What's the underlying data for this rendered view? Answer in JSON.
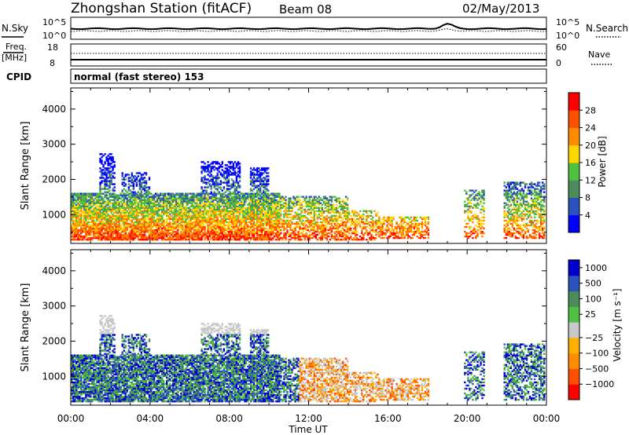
{
  "header": {
    "station": "Zhongshan Station (fitACF)",
    "beam": "Beam 08",
    "date": "02/May/2013"
  },
  "sky_panel": {
    "left_label": "N.Sky",
    "left_top": "10^5",
    "left_bottom": "10^0",
    "right_top": "10^5",
    "right_bottom": "10^0",
    "right_label": "N.Search"
  },
  "freq_panel": {
    "left_label_1": "Freq.",
    "left_label_2": "[MHz]",
    "left_top": "18",
    "left_bottom": "8",
    "right_top": "60",
    "right_bottom": "0",
    "right_label": "Nave"
  },
  "cpid": {
    "label": "CPID",
    "text": "normal (fast stereo) 153"
  },
  "colors": {
    "power_scale": [
      "#0000ff",
      "#2a52be",
      "#4c8c5c",
      "#50c040",
      "#ffd700",
      "#ff8c00",
      "#ff5000",
      "#ff0000"
    ],
    "velocity_scale": [
      "#ff0000",
      "#ff5000",
      "#ff8c00",
      "#ffb000",
      "#c8c8c8",
      "#50c040",
      "#4c8c5c",
      "#2a52be",
      "#0000cc"
    ]
  },
  "chart_data": [
    {
      "type": "heatmap",
      "panel": "power",
      "ylabel": "Slant Range [km]",
      "xlabel": "Time UT",
      "x_ticks": [
        "00:00",
        "04:00",
        "08:00",
        "12:00",
        "16:00",
        "20:00",
        "00:00"
      ],
      "y_ticks": [
        1000,
        2000,
        3000,
        4000
      ],
      "xlim": [
        0,
        24
      ],
      "ylim": [
        180,
        4600
      ],
      "colorbar": {
        "label": "Power [dB]",
        "ticks": [
          "4",
          "8",
          "12",
          "16",
          "20",
          "24",
          "28"
        ],
        "range": [
          0,
          32
        ]
      }
    },
    {
      "type": "heatmap",
      "panel": "velocity",
      "ylabel": "Slant Range [km]",
      "xlabel": "Time UT",
      "x_ticks": [
        "00:00",
        "04:00",
        "08:00",
        "12:00",
        "16:00",
        "20:00",
        "00:00"
      ],
      "y_ticks": [
        1000,
        2000,
        3000,
        4000
      ],
      "xlim": [
        0,
        24
      ],
      "ylim": [
        180,
        4600
      ],
      "colorbar": {
        "label": "Velocity [m s⁻¹]",
        "ticks": [
          "1000",
          "500",
          "100",
          "25",
          "−25",
          "−100",
          "−500",
          "−1000"
        ]
      }
    }
  ]
}
